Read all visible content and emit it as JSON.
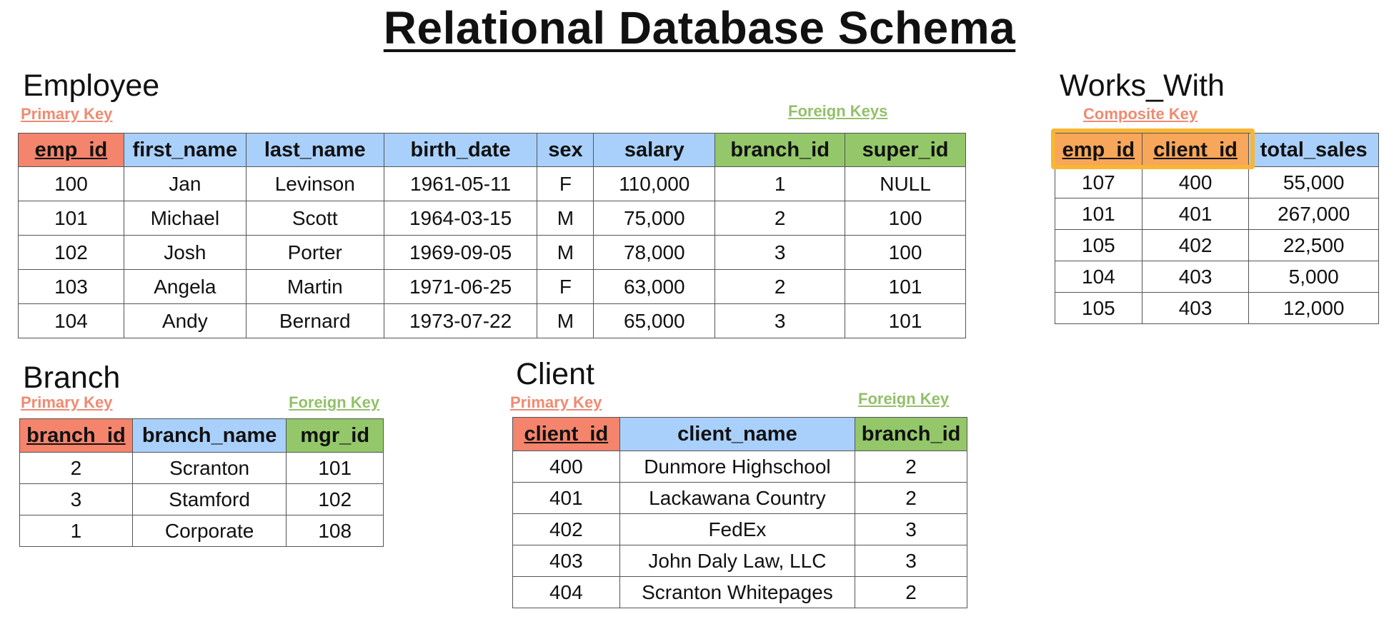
{
  "title": "Relational Database Schema",
  "employee": {
    "name": "Employee",
    "primary_key_label": "Primary Key",
    "foreign_key_label": "Foreign Keys",
    "columns": [
      "emp_id",
      "first_name",
      "last_name",
      "birth_date",
      "sex",
      "salary",
      "branch_id",
      "super_id"
    ],
    "rows": [
      [
        "100",
        "Jan",
        "Levinson",
        "1961-05-11",
        "F",
        "110,000",
        "1",
        "NULL"
      ],
      [
        "101",
        "Michael",
        "Scott",
        "1964-03-15",
        "M",
        "75,000",
        "2",
        "100"
      ],
      [
        "102",
        "Josh",
        "Porter",
        "1969-09-05",
        "M",
        "78,000",
        "3",
        "100"
      ],
      [
        "103",
        "Angela",
        "Martin",
        "1971-06-25",
        "F",
        "63,000",
        "2",
        "101"
      ],
      [
        "104",
        "Andy",
        "Bernard",
        "1973-07-22",
        "M",
        "65,000",
        "3",
        "101"
      ]
    ]
  },
  "works_with": {
    "name": "Works_With",
    "composite_key_label": "Composite Key",
    "columns": [
      "emp_id",
      "client_id",
      "total_sales"
    ],
    "rows": [
      [
        "107",
        "400",
        "55,000"
      ],
      [
        "101",
        "401",
        "267,000"
      ],
      [
        "105",
        "402",
        "22,500"
      ],
      [
        "104",
        "403",
        "5,000"
      ],
      [
        "105",
        "403",
        "12,000"
      ]
    ]
  },
  "branch": {
    "name": "Branch",
    "primary_key_label": "Primary Key",
    "foreign_key_label": "Foreign Key",
    "columns": [
      "branch_id",
      "branch_name",
      "mgr_id"
    ],
    "rows": [
      [
        "2",
        "Scranton",
        "101"
      ],
      [
        "3",
        "Stamford",
        "102"
      ],
      [
        "1",
        "Corporate",
        "108"
      ]
    ]
  },
  "client": {
    "name": "Client",
    "primary_key_label": "Primary Key",
    "foreign_key_label": "Foreign Key",
    "columns": [
      "client_id",
      "client_name",
      "branch_id"
    ],
    "rows": [
      [
        "400",
        "Dunmore Highschool",
        "2"
      ],
      [
        "401",
        "Lackawana Country",
        "2"
      ],
      [
        "402",
        "FedEx",
        "3"
      ],
      [
        "403",
        "John Daly Law, LLC",
        "3"
      ],
      [
        "404",
        "Scranton Whitepages",
        "2"
      ]
    ]
  },
  "colors": {
    "primary_key": "#f4846c",
    "non_key": "#a9d0fb",
    "foreign_key": "#93c769",
    "composite_highlight": "#f9b534"
  }
}
